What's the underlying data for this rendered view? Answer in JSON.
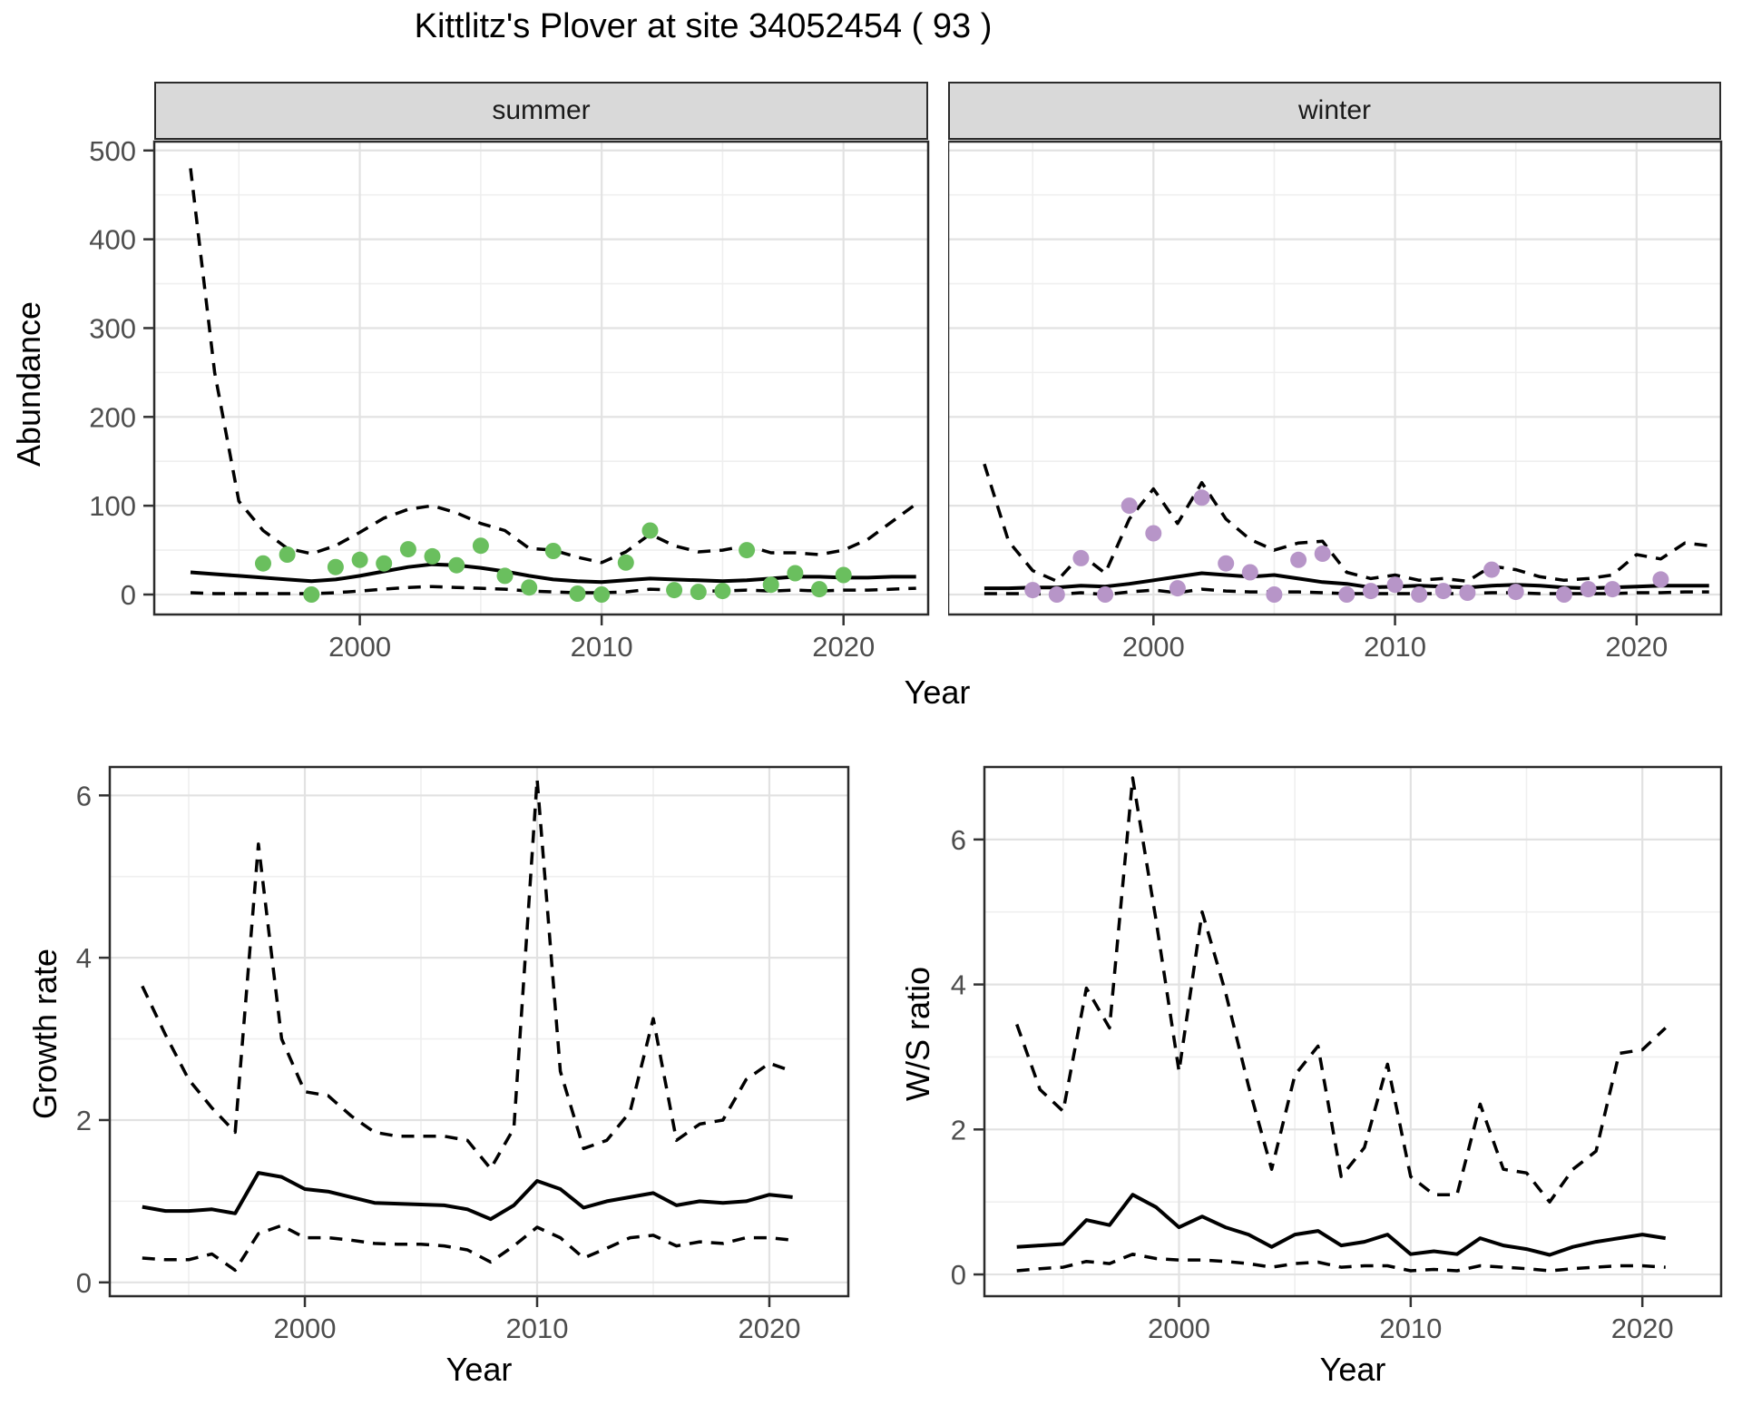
{
  "title": "Kittlitz's Plover at site 34052454 ( 93 )",
  "labels": {
    "abundance": "Abundance",
    "growth_rate": "Growth rate",
    "ws_ratio": "W/S ratio",
    "year": "Year"
  },
  "facets": [
    "summer",
    "winter"
  ],
  "colors": {
    "summer_point": "#6ABF5E",
    "winter_point": "#B795C8",
    "line": "#000000",
    "grid_major": "#e2e2e2",
    "grid_minor": "#efefef",
    "strip_bg": "#d9d9d9",
    "panel_border": "#2b2b2b",
    "tick_text": "#4d4d4d"
  },
  "chart_data": [
    {
      "type": "line",
      "title": "summer",
      "xlabel": "Year",
      "ylabel": "Abundance",
      "xlim": [
        1991.5,
        2023.5
      ],
      "ylim": [
        -22.5,
        510
      ],
      "xticks": [
        2000,
        2010,
        2020
      ],
      "yticks": [
        0,
        100,
        200,
        300,
        400,
        500
      ],
      "grid": true,
      "legend": "none",
      "series": [
        {
          "name": "observed-counts",
          "style": "points",
          "color": "#6ABF5E",
          "x": [
            1996,
            1997,
            1998,
            1999,
            2000,
            2001,
            2002,
            2003,
            2004,
            2005,
            2006,
            2007,
            2008,
            2009,
            2010,
            2011,
            2012,
            2013,
            2014,
            2015,
            2016,
            2017,
            2018,
            2019,
            2020
          ],
          "y": [
            35,
            45,
            0,
            31,
            39,
            35,
            51,
            43,
            33,
            55,
            21,
            8,
            49,
            1,
            0,
            36,
            72,
            5,
            3,
            4,
            50,
            11,
            24,
            6,
            22
          ]
        },
        {
          "name": "model-fit",
          "style": "solid",
          "color": "#000000",
          "x": [
            1993,
            1994,
            1995,
            1996,
            1997,
            1998,
            1999,
            2000,
            2001,
            2002,
            2003,
            2004,
            2005,
            2006,
            2007,
            2008,
            2009,
            2010,
            2011,
            2012,
            2013,
            2014,
            2015,
            2016,
            2017,
            2018,
            2019,
            2020,
            2021,
            2022,
            2023
          ],
          "y": [
            25,
            23,
            21,
            19,
            17,
            15,
            17,
            21,
            26,
            31,
            34,
            33,
            30,
            26,
            21,
            17,
            15,
            14,
            16,
            18,
            17,
            16,
            15,
            16,
            18,
            20,
            20,
            19,
            19,
            20,
            20
          ]
        },
        {
          "name": "upper-95ci",
          "style": "dashed",
          "color": "#000000",
          "x": [
            1993,
            1994,
            1995,
            1996,
            1997,
            1998,
            1999,
            2000,
            2001,
            2002,
            2003,
            2004,
            2005,
            2006,
            2007,
            2008,
            2009,
            2010,
            2011,
            2012,
            2013,
            2014,
            2015,
            2016,
            2017,
            2018,
            2019,
            2020,
            2021,
            2022,
            2023
          ],
          "y": [
            480,
            250,
            105,
            72,
            52,
            46,
            55,
            70,
            86,
            96,
            100,
            92,
            80,
            72,
            52,
            50,
            42,
            36,
            48,
            68,
            55,
            48,
            50,
            55,
            47,
            47,
            45,
            50,
            62,
            82,
            102
          ]
        },
        {
          "name": "lower-95ci",
          "style": "dashed",
          "color": "#000000",
          "x": [
            1993,
            1994,
            1995,
            1996,
            1997,
            1998,
            1999,
            2000,
            2001,
            2002,
            2003,
            2004,
            2005,
            2006,
            2007,
            2008,
            2009,
            2010,
            2011,
            2012,
            2013,
            2014,
            2015,
            2016,
            2017,
            2018,
            2019,
            2020,
            2021,
            2022,
            2023
          ],
          "y": [
            2,
            1,
            1,
            1,
            1,
            1,
            2,
            4,
            6,
            8,
            9,
            8,
            7,
            6,
            4,
            3,
            2,
            2,
            3,
            6,
            5,
            4,
            4,
            5,
            4,
            5,
            4,
            5,
            5,
            6,
            7
          ]
        }
      ]
    },
    {
      "type": "line",
      "title": "winter",
      "xlabel": "Year",
      "ylabel": "Abundance",
      "xlim": [
        1991.5,
        2023.5
      ],
      "ylim": [
        -22.5,
        510
      ],
      "xticks": [
        2000,
        2010,
        2020
      ],
      "yticks": [
        0,
        100,
        200,
        300,
        400,
        500
      ],
      "grid": true,
      "legend": "none",
      "series": [
        {
          "name": "observed-counts",
          "style": "points",
          "color": "#B795C8",
          "x": [
            1995,
            1996,
            1997,
            1998,
            1999,
            2000,
            2001,
            2002,
            2003,
            2004,
            2005,
            2006,
            2007,
            2008,
            2009,
            2010,
            2011,
            2012,
            2013,
            2014,
            2015,
            2017,
            2018,
            2019,
            2021
          ],
          "y": [
            5,
            0,
            41,
            0,
            100,
            69,
            7,
            109,
            35,
            25,
            0,
            39,
            46,
            0,
            4,
            11,
            0,
            4,
            2,
            28,
            3,
            0,
            6,
            6,
            17
          ]
        },
        {
          "name": "model-fit",
          "style": "solid",
          "color": "#000000",
          "x": [
            1993,
            1994,
            1995,
            1996,
            1997,
            1998,
            1999,
            2000,
            2001,
            2002,
            2003,
            2004,
            2005,
            2006,
            2007,
            2008,
            2009,
            2010,
            2011,
            2012,
            2013,
            2014,
            2015,
            2016,
            2017,
            2018,
            2019,
            2020,
            2021,
            2022,
            2023
          ],
          "y": [
            7,
            7,
            8,
            8,
            10,
            9,
            12,
            16,
            20,
            24,
            22,
            20,
            22,
            18,
            14,
            12,
            8,
            9,
            10,
            9,
            8,
            10,
            11,
            10,
            8,
            7,
            8,
            9,
            10,
            10,
            10
          ]
        },
        {
          "name": "upper-95ci",
          "style": "dashed",
          "color": "#000000",
          "x": [
            1993,
            1994,
            1995,
            1996,
            1997,
            1998,
            1999,
            2000,
            2001,
            2002,
            2003,
            2004,
            2005,
            2006,
            2007,
            2008,
            2009,
            2010,
            2011,
            2012,
            2013,
            2014,
            2015,
            2016,
            2017,
            2018,
            2019,
            2020,
            2021,
            2022,
            2023
          ],
          "y": [
            147,
            60,
            27,
            15,
            45,
            24,
            85,
            119,
            80,
            126,
            85,
            62,
            50,
            58,
            60,
            25,
            18,
            22,
            16,
            18,
            15,
            32,
            28,
            20,
            16,
            18,
            22,
            45,
            40,
            58,
            55
          ]
        },
        {
          "name": "lower-95ci",
          "style": "dashed",
          "color": "#000000",
          "x": [
            1993,
            1994,
            1995,
            1996,
            1997,
            1998,
            1999,
            2000,
            2001,
            2002,
            2003,
            2004,
            2005,
            2006,
            2007,
            2008,
            2009,
            2010,
            2011,
            2012,
            2013,
            2014,
            2015,
            2016,
            2017,
            2018,
            2019,
            2020,
            2021,
            2022,
            2023
          ],
          "y": [
            1,
            1,
            1,
            0,
            2,
            0,
            3,
            5,
            2,
            6,
            4,
            3,
            3,
            3,
            2,
            1,
            1,
            1,
            1,
            1,
            1,
            2,
            2,
            1,
            1,
            1,
            1,
            2,
            2,
            3,
            3
          ]
        }
      ]
    },
    {
      "type": "line",
      "title": "Growth rate",
      "xlabel": "Year",
      "ylabel": "Growth rate",
      "xlim": [
        1991.6,
        2023.4
      ],
      "ylim": [
        -0.17,
        6.35
      ],
      "xticks": [
        2000,
        2010,
        2020
      ],
      "yticks": [
        0,
        2,
        4,
        6
      ],
      "grid": true,
      "legend": "none",
      "series": [
        {
          "name": "median-growth-rate",
          "style": "solid",
          "color": "#000000",
          "x": [
            1993,
            1994,
            1995,
            1996,
            1997,
            1998,
            1999,
            2000,
            2001,
            2002,
            2003,
            2004,
            2005,
            2006,
            2007,
            2008,
            2009,
            2010,
            2011,
            2012,
            2013,
            2014,
            2015,
            2016,
            2017,
            2018,
            2019,
            2020,
            2021
          ],
          "y": [
            0.93,
            0.88,
            0.88,
            0.9,
            0.85,
            1.35,
            1.3,
            1.15,
            1.12,
            1.05,
            0.98,
            0.97,
            0.96,
            0.95,
            0.9,
            0.78,
            0.95,
            1.25,
            1.15,
            0.92,
            1.0,
            1.05,
            1.1,
            0.95,
            1.0,
            0.98,
            1.0,
            1.08,
            1.05
          ]
        },
        {
          "name": "upper-95ci",
          "style": "dashed",
          "color": "#000000",
          "x": [
            1993,
            1994,
            1995,
            1996,
            1997,
            1998,
            1999,
            2000,
            2001,
            2002,
            2003,
            2004,
            2005,
            2006,
            2007,
            2008,
            2009,
            2010,
            2011,
            2012,
            2013,
            2014,
            2015,
            2016,
            2017,
            2018,
            2019,
            2020,
            2021
          ],
          "y": [
            3.65,
            3.05,
            2.5,
            2.15,
            1.85,
            5.4,
            3.0,
            2.35,
            2.3,
            2.05,
            1.85,
            1.8,
            1.8,
            1.8,
            1.75,
            1.4,
            1.9,
            6.2,
            2.6,
            1.65,
            1.75,
            2.1,
            3.25,
            1.75,
            1.95,
            2.0,
            2.5,
            2.7,
            2.6
          ]
        },
        {
          "name": "lower-95ci",
          "style": "dashed",
          "color": "#000000",
          "x": [
            1993,
            1994,
            1995,
            1996,
            1997,
            1998,
            1999,
            2000,
            2001,
            2002,
            2003,
            2004,
            2005,
            2006,
            2007,
            2008,
            2009,
            2010,
            2011,
            2012,
            2013,
            2014,
            2015,
            2016,
            2017,
            2018,
            2019,
            2020,
            2021
          ],
          "y": [
            0.3,
            0.28,
            0.28,
            0.35,
            0.15,
            0.6,
            0.7,
            0.55,
            0.55,
            0.52,
            0.48,
            0.47,
            0.47,
            0.45,
            0.4,
            0.25,
            0.45,
            0.68,
            0.55,
            0.3,
            0.42,
            0.55,
            0.58,
            0.45,
            0.5,
            0.48,
            0.55,
            0.55,
            0.52
          ]
        }
      ]
    },
    {
      "type": "line",
      "title": "W/S ratio",
      "xlabel": "Year",
      "ylabel": "W/S ratio",
      "xlim": [
        1991.6,
        2023.4
      ],
      "ylim": [
        -0.3,
        7.0
      ],
      "xticks": [
        2000,
        2010,
        2020
      ],
      "yticks": [
        0,
        2,
        4,
        6
      ],
      "grid": true,
      "legend": "none",
      "series": [
        {
          "name": "median-ws-ratio",
          "style": "solid",
          "color": "#000000",
          "x": [
            1993,
            1994,
            1995,
            1996,
            1997,
            1998,
            1999,
            2000,
            2001,
            2002,
            2003,
            2004,
            2005,
            2006,
            2007,
            2008,
            2009,
            2010,
            2011,
            2012,
            2013,
            2014,
            2015,
            2016,
            2017,
            2018,
            2019,
            2020,
            2021
          ],
          "y": [
            0.38,
            0.4,
            0.42,
            0.75,
            0.68,
            1.1,
            0.93,
            0.65,
            0.8,
            0.65,
            0.55,
            0.38,
            0.55,
            0.6,
            0.4,
            0.45,
            0.55,
            0.28,
            0.32,
            0.28,
            0.5,
            0.4,
            0.35,
            0.27,
            0.38,
            0.45,
            0.5,
            0.55,
            0.5
          ]
        },
        {
          "name": "upper-95ci",
          "style": "dashed",
          "color": "#000000",
          "x": [
            1993,
            1994,
            1995,
            1996,
            1997,
            1998,
            1999,
            2000,
            2001,
            2002,
            2003,
            2004,
            2005,
            2006,
            2007,
            2008,
            2009,
            2010,
            2011,
            2012,
            2013,
            2014,
            2015,
            2016,
            2017,
            2018,
            2019,
            2020,
            2021
          ],
          "y": [
            3.45,
            2.55,
            2.25,
            3.95,
            3.4,
            6.85,
            4.9,
            2.8,
            5.0,
            3.9,
            2.6,
            1.45,
            2.75,
            3.15,
            1.35,
            1.75,
            2.9,
            1.35,
            1.1,
            1.1,
            2.35,
            1.45,
            1.4,
            1.0,
            1.45,
            1.7,
            3.05,
            3.1,
            3.4
          ]
        },
        {
          "name": "lower-95ci",
          "style": "dashed",
          "color": "#000000",
          "x": [
            1993,
            1994,
            1995,
            1996,
            1997,
            1998,
            1999,
            2000,
            2001,
            2002,
            2003,
            2004,
            2005,
            2006,
            2007,
            2008,
            2009,
            2010,
            2011,
            2012,
            2013,
            2014,
            2015,
            2016,
            2017,
            2018,
            2019,
            2020,
            2021
          ],
          "y": [
            0.05,
            0.08,
            0.1,
            0.18,
            0.15,
            0.28,
            0.22,
            0.2,
            0.2,
            0.18,
            0.15,
            0.1,
            0.15,
            0.17,
            0.1,
            0.12,
            0.12,
            0.05,
            0.07,
            0.05,
            0.12,
            0.1,
            0.08,
            0.05,
            0.08,
            0.1,
            0.12,
            0.12,
            0.1
          ]
        }
      ]
    }
  ]
}
